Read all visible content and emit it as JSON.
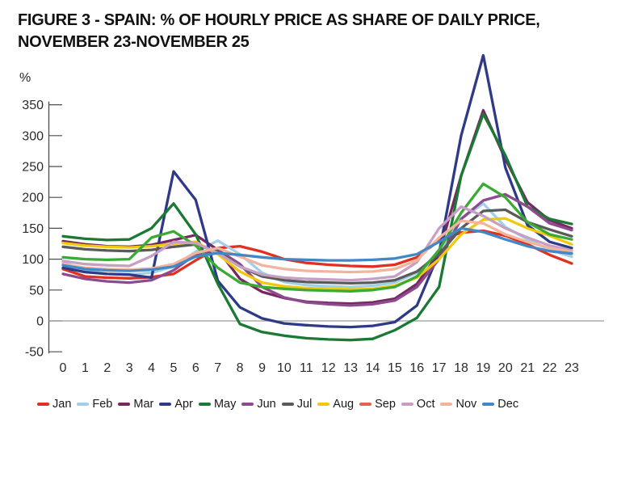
{
  "figure": {
    "title_line1": "FIGURE 3  - SPAIN: % OF HOURLY PRICE AS SHARE OF DAILY PRICE,",
    "title_line2": "NOVEMBER 23-NOVEMBER 25",
    "unit_label": "%"
  },
  "chart_data": {
    "type": "line",
    "title": "FIGURE 3 - SPAIN: % OF HOURLY PRICE AS SHARE OF DAILY PRICE, NOVEMBER 23-NOVEMBER 25",
    "xlabel": "",
    "ylabel": "%",
    "x": [
      0,
      1,
      2,
      3,
      4,
      5,
      6,
      7,
      8,
      9,
      10,
      11,
      12,
      13,
      14,
      15,
      16,
      17,
      18,
      19,
      20,
      21,
      22,
      23
    ],
    "ylim": [
      -50,
      440
    ],
    "yticks": [
      350,
      300,
      250,
      200,
      150,
      100,
      50,
      0,
      -50
    ],
    "grid": false,
    "zero_line": true,
    "legend_position": "bottom",
    "axis_color": "#4d4d4d",
    "zero_line_color": "#9a9a9a",
    "tick_label_color": "#2b2b2b",
    "series": [
      {
        "name": "Jan",
        "color": "#e0301e",
        "values": [
          84,
          72,
          70,
          69,
          71,
          76,
          98,
          118,
          121,
          112,
          100,
          94,
          91,
          89,
          88,
          91,
          103,
          130,
          143,
          146,
          138,
          124,
          107,
          93
        ]
      },
      {
        "name": "Feb",
        "color": "#9fd0e8",
        "values": [
          95,
          82,
          76,
          75,
          78,
          88,
          112,
          130,
          108,
          78,
          63,
          58,
          56,
          55,
          57,
          62,
          78,
          112,
          165,
          190,
          152,
          132,
          115,
          104
        ]
      },
      {
        "name": "Mar",
        "color": "#76295e",
        "values": [
          129,
          124,
          121,
          120,
          123,
          131,
          139,
          115,
          68,
          47,
          37,
          31,
          29,
          28,
          30,
          36,
          60,
          110,
          235,
          341,
          262,
          192,
          163,
          150
        ]
      },
      {
        "name": "Apr",
        "color": "#2e3a87",
        "values": [
          86,
          79,
          76,
          75,
          70,
          242,
          196,
          65,
          22,
          4,
          -4,
          -7,
          -9,
          -10,
          -8,
          -2,
          25,
          110,
          300,
          430,
          248,
          155,
          128,
          118
        ]
      },
      {
        "name": "May",
        "color": "#1a7a33",
        "values": [
          137,
          133,
          131,
          132,
          150,
          190,
          140,
          60,
          -5,
          -18,
          -24,
          -28,
          -30,
          -31,
          -29,
          -15,
          5,
          55,
          235,
          335,
          268,
          185,
          165,
          157
        ]
      },
      {
        "name": "Jun",
        "color": "#8e4a8e",
        "values": [
          76,
          68,
          64,
          62,
          66,
          82,
          108,
          115,
          92,
          55,
          38,
          30,
          27,
          25,
          27,
          33,
          55,
          100,
          165,
          195,
          205,
          185,
          158,
          147
        ]
      },
      {
        "name": "Jul",
        "color": "#5a5a5a",
        "values": [
          120,
          116,
          114,
          113,
          115,
          120,
          124,
          112,
          88,
          72,
          66,
          63,
          62,
          61,
          62,
          66,
          80,
          108,
          150,
          178,
          180,
          160,
          148,
          137
        ]
      },
      {
        "name": "Aug",
        "color": "#f2c80f",
        "values": [
          126,
          122,
          120,
          119,
          121,
          125,
          128,
          108,
          80,
          62,
          56,
          53,
          52,
          51,
          52,
          57,
          70,
          100,
          140,
          164,
          166,
          150,
          138,
          124
        ]
      },
      {
        "name": "Sep",
        "color": "#e8604e",
        "plotted_color": "#3aaa35",
        "values": [
          103,
          100,
          99,
          100,
          135,
          145,
          122,
          86,
          62,
          55,
          52,
          50,
          49,
          48,
          50,
          55,
          72,
          115,
          175,
          222,
          200,
          160,
          140,
          132
        ]
      },
      {
        "name": "Oct",
        "color": "#c79fc4",
        "values": [
          97,
          92,
          90,
          89,
          105,
          128,
          126,
          110,
          88,
          75,
          70,
          68,
          67,
          66,
          68,
          72,
          95,
          150,
          185,
          170,
          150,
          135,
          122,
          114
        ]
      },
      {
        "name": "Nov",
        "color": "#f2b49c",
        "values": [
          92,
          86,
          84,
          83,
          85,
          92,
          110,
          118,
          104,
          90,
          84,
          81,
          80,
          79,
          80,
          84,
          98,
          135,
          162,
          158,
          140,
          128,
          118,
          112
        ]
      },
      {
        "name": "Dec",
        "color": "#4288c5",
        "values": [
          90,
          84,
          82,
          81,
          83,
          88,
          104,
          110,
          107,
          103,
          100,
          99,
          98,
          98,
          99,
          101,
          108,
          128,
          150,
          144,
          132,
          121,
          113,
          109
        ]
      }
    ]
  }
}
